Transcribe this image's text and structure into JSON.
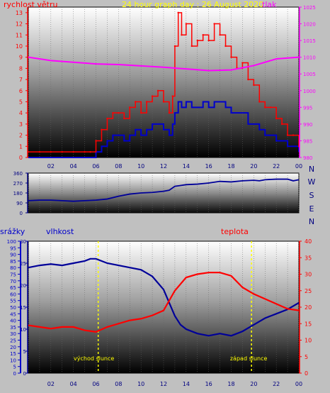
{
  "title": "24 hour graph day : 26 August 2020",
  "colors": {
    "wind": "#ff0000",
    "wind_gust_fill": "#0000cc",
    "pressure": "#ff00ff",
    "direction": "#000099",
    "humidity": "#000099",
    "temperature": "#ff0000",
    "rain": "#0000cc",
    "sun": "#ffff00",
    "title": "#ffff00"
  },
  "chart_data": [
    {
      "type": "line",
      "name": "wind-pressure",
      "ylabel_left": "rychlost větru",
      "ylabel_right": "tlak",
      "ylim_left": [
        0,
        13.5
      ],
      "ylim_right": [
        980,
        1025
      ],
      "yticks_left": [
        "0",
        "1",
        "2",
        "3",
        "4",
        "5",
        "6",
        "7",
        "8",
        "9",
        "10",
        "11",
        "12",
        "13"
      ],
      "yticks_right": [
        "980",
        "985",
        "990",
        "995",
        "1000",
        "1005",
        "1010",
        "1015",
        "1020",
        "1025"
      ],
      "xticks": [
        "02",
        "04",
        "06",
        "08",
        "10",
        "12",
        "14",
        "16",
        "18",
        "20",
        "22",
        "00"
      ],
      "xlim": [
        0,
        24
      ],
      "series": [
        {
          "key": "wind_gust",
          "x": [
            0,
            1,
            2,
            3,
            4,
            5,
            5.5,
            6,
            6.5,
            7,
            7.5,
            8,
            8.5,
            9,
            9.5,
            10,
            10.5,
            11,
            11.5,
            12,
            12.5,
            12.8,
            13,
            13.3,
            13.6,
            14,
            14.5,
            15,
            15.5,
            16,
            16.5,
            17,
            17.5,
            18,
            18.5,
            19,
            19.5,
            20,
            20.5,
            21,
            21.5,
            22,
            22.5,
            23,
            23.5,
            24
          ],
          "y": [
            0.5,
            0.5,
            0.5,
            0.5,
            0.5,
            0.5,
            0.5,
            1.5,
            2.5,
            3.5,
            4,
            4,
            3.5,
            4.5,
            5,
            4,
            5,
            5.5,
            6,
            5,
            4,
            5.5,
            10,
            13,
            11,
            12,
            10,
            10.5,
            11,
            10.5,
            12,
            11,
            10,
            9,
            8,
            8.5,
            7,
            6.5,
            5,
            4.5,
            4.5,
            3.5,
            3,
            2,
            2,
            1
          ]
        },
        {
          "key": "wind_avg",
          "x": [
            0,
            1,
            2,
            3,
            4,
            5,
            5.5,
            6,
            6.5,
            7,
            7.5,
            8,
            8.5,
            9,
            9.5,
            10,
            10.5,
            11,
            11.5,
            12,
            12.5,
            12.8,
            13,
            13.3,
            13.6,
            14,
            14.5,
            15,
            15.5,
            16,
            16.5,
            17,
            17.5,
            18,
            18.5,
            19,
            19.5,
            20,
            20.5,
            21,
            21.5,
            22,
            22.5,
            23,
            23.5,
            24
          ],
          "y": [
            0,
            0,
            0,
            0,
            0,
            0,
            0,
            0.5,
            1,
            1.5,
            2,
            2,
            1.5,
            2,
            2.5,
            2,
            2.5,
            3,
            3,
            2.5,
            2,
            3,
            4,
            5,
            4.5,
            5,
            4.5,
            4.5,
            5,
            4.5,
            5,
            5,
            4.5,
            4,
            4,
            4,
            3,
            3,
            2.5,
            2,
            2,
            1.5,
            1.5,
            1,
            1,
            0.5
          ]
        },
        {
          "key": "pressure",
          "x": [
            0,
            2,
            4,
            6,
            8,
            10,
            12,
            14,
            16,
            18,
            20,
            22,
            24
          ],
          "y": [
            1010,
            1009,
            1008.5,
            1008,
            1007.8,
            1007.4,
            1007,
            1006.5,
            1006,
            1006.2,
            1007.5,
            1009.5,
            1010
          ]
        }
      ]
    },
    {
      "type": "line",
      "name": "wind-direction",
      "ylim": [
        0,
        360
      ],
      "yticks": [
        "0",
        "90",
        "180",
        "270",
        "360"
      ],
      "right_labels": [
        "N",
        "W",
        "S",
        "E",
        "N"
      ],
      "xlim": [
        0,
        24
      ],
      "series": [
        {
          "key": "direction",
          "x": [
            0,
            1,
            2,
            3,
            4,
            5,
            6,
            7,
            8,
            9,
            10,
            11,
            12,
            12.5,
            13,
            14,
            15,
            16,
            17,
            18,
            19,
            20,
            20.5,
            21,
            22,
            23,
            23.5,
            24
          ],
          "y": [
            110,
            115,
            115,
            110,
            105,
            110,
            115,
            125,
            150,
            170,
            180,
            185,
            195,
            205,
            240,
            255,
            260,
            270,
            285,
            280,
            290,
            295,
            290,
            300,
            305,
            305,
            290,
            300
          ]
        }
      ]
    },
    {
      "type": "line",
      "name": "humidity-temperature-rain",
      "ylabel_rain": "srážky",
      "ylabel_humidity": "vlhkost",
      "ylabel_temperature": "teplota",
      "ylim_rain": [
        0,
        100
      ],
      "ylim_humidity": [
        0,
        30
      ],
      "ylim_temperature": [
        0,
        40
      ],
      "yticks_rain": [
        "0",
        "5",
        "10",
        "15",
        "20",
        "25",
        "30",
        "35",
        "40",
        "45",
        "50",
        "55",
        "60",
        "65",
        "70",
        "75",
        "80",
        "85",
        "90",
        "95",
        "100"
      ],
      "yticks_humidity": [
        "0",
        "5",
        "10",
        "15",
        "20",
        "25",
        "30"
      ],
      "yticks_temperature": [
        "0",
        "5",
        "10",
        "15",
        "20",
        "25",
        "30",
        "35",
        "40"
      ],
      "xticks": [
        "02",
        "04",
        "06",
        "08",
        "10",
        "12",
        "14",
        "16",
        "18",
        "20",
        "22",
        "00"
      ],
      "xlim": [
        0,
        24
      ],
      "sunrise_hour": 6.2,
      "sunset_hour": 19.8,
      "sunrise_label": "východ slunce",
      "sunset_label": "západ slunce",
      "series": [
        {
          "key": "humidity",
          "x": [
            0,
            1,
            2,
            3,
            4,
            5,
            5.5,
            6,
            7,
            8,
            9,
            10,
            11,
            12,
            12.5,
            13,
            13.5,
            14,
            15,
            16,
            17,
            18,
            19,
            20,
            21,
            22,
            23,
            24
          ],
          "y": [
            24,
            24.5,
            24.8,
            24.5,
            25,
            25.5,
            26,
            26,
            25,
            24.5,
            24,
            23.5,
            22,
            19,
            16,
            13,
            11,
            10,
            9,
            8.5,
            9,
            8.5,
            9.5,
            11,
            12.5,
            13.5,
            14.5,
            16
          ]
        },
        {
          "key": "temperature",
          "x": [
            0,
            1,
            2,
            3,
            4,
            5,
            6,
            7,
            8,
            9,
            10,
            11,
            12,
            13,
            14,
            15,
            16,
            17,
            18,
            19,
            20,
            21,
            22,
            23,
            24
          ],
          "y": [
            14.5,
            14,
            13.5,
            14,
            14,
            13,
            12.5,
            14,
            15,
            16,
            16.5,
            17.5,
            19,
            25,
            29,
            30,
            30.5,
            30.5,
            29.5,
            26,
            24,
            22.5,
            21,
            19.5,
            19
          ]
        }
      ]
    }
  ]
}
